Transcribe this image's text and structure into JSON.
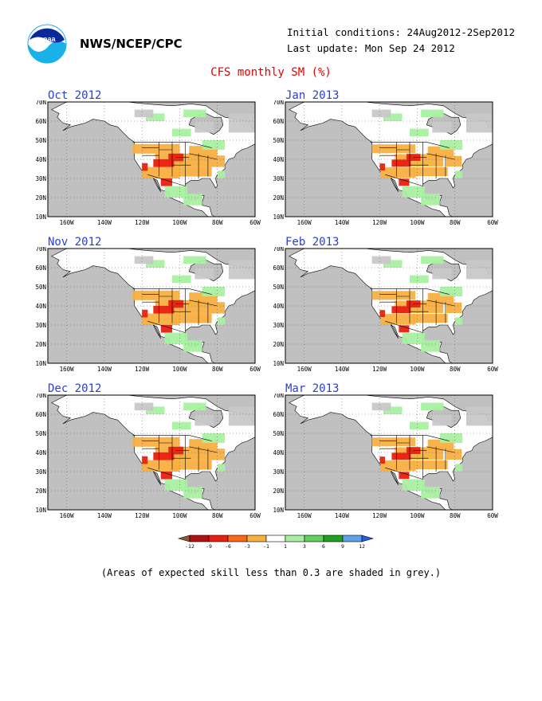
{
  "header": {
    "agency": "NWS/NCEP/CPC",
    "initial_conditions": "Initial conditions: 24Aug2012-2Sep2012",
    "last_update": "Last update: Mon Sep 24 2012",
    "title": "CFS monthly SM (%)"
  },
  "logo": {
    "icon": "noaa-logo-icon",
    "text": "noaa"
  },
  "panels": [
    {
      "title": "Oct 2012"
    },
    {
      "title": "Jan 2013"
    },
    {
      "title": "Nov 2012"
    },
    {
      "title": "Feb 2013"
    },
    {
      "title": "Dec 2012"
    },
    {
      "title": "Mar 2013"
    }
  ],
  "axes": {
    "lat_labels": [
      "70N",
      "60N",
      "50N",
      "40N",
      "30N",
      "20N",
      "10N"
    ],
    "lon_labels": [
      "160W",
      "140W",
      "120W",
      "100W",
      "80W",
      "60W"
    ]
  },
  "legend": {
    "labels": [
      "-12",
      "-9",
      "-6",
      "-3",
      "-1",
      "1",
      "3",
      "6",
      "9",
      "12"
    ],
    "colors": [
      "#8b5a3c",
      "#b01010",
      "#e82010",
      "#f86818",
      "#f8b040",
      "#ffffff",
      "#a8f0a0",
      "#60d060",
      "#20a020",
      "#60a0e8",
      "#2060e0"
    ]
  },
  "colors": {
    "ocean": "#ffffff",
    "low_skill_grey": "#c8c8c8",
    "dry": "#f8b040",
    "very_dry": "#e82010",
    "wet": "#a8f0a0",
    "title_red": "#e00000",
    "panel_title_blue": "#2a3fd0"
  },
  "footnote": "(Areas of expected skill less than 0.3 are shaded in grey.)"
}
